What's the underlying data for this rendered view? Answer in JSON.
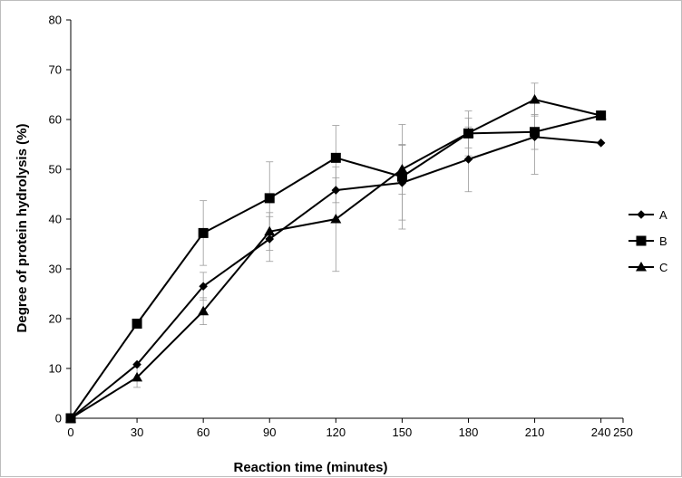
{
  "chart_data": {
    "type": "line",
    "xlabel": "Reaction time (minutes)",
    "ylabel": "Degree of protein hydrolysis (%)",
    "xlim": [
      0,
      250
    ],
    "ylim": [
      0,
      80
    ],
    "x_ticks": [
      "0",
      "30",
      "60",
      "90",
      "120",
      "150",
      "180",
      "210",
      "240",
      "250"
    ],
    "y_ticks": [
      "0",
      "10",
      "20",
      "30",
      "40",
      "50",
      "60",
      "70",
      "80"
    ],
    "grid": false,
    "legend_position": "right",
    "series": [
      {
        "name": "A",
        "marker": "diamond",
        "x": [
          0,
          30,
          60,
          90,
          120,
          150,
          180,
          210,
          240
        ],
        "y": [
          0,
          10.8,
          26.5,
          36.0,
          45.8,
          47.3,
          52.0,
          56.5,
          55.3
        ],
        "err": [
          0,
          0,
          2.8,
          4.5,
          2.5,
          7.5,
          6.5,
          7.5,
          0
        ]
      },
      {
        "name": "B",
        "marker": "square",
        "x": [
          0,
          30,
          60,
          90,
          120,
          150,
          180,
          210,
          240
        ],
        "y": [
          0,
          19.0,
          37.2,
          44.2,
          52.3,
          48.5,
          57.2,
          57.5,
          60.8
        ],
        "err": [
          0,
          0,
          6.5,
          7.3,
          6.5,
          10.5,
          4.5,
          3.5,
          0
        ]
      },
      {
        "name": "C",
        "marker": "triangle",
        "x": [
          0,
          30,
          60,
          90,
          120,
          150,
          180,
          210,
          240
        ],
        "y": [
          0,
          8.2,
          21.5,
          37.5,
          40.0,
          50.0,
          57.3,
          64.0,
          60.8
        ],
        "err": [
          0,
          2.0,
          2.7,
          3.8,
          10.5,
          5.0,
          3.0,
          3.3,
          0
        ]
      }
    ]
  }
}
